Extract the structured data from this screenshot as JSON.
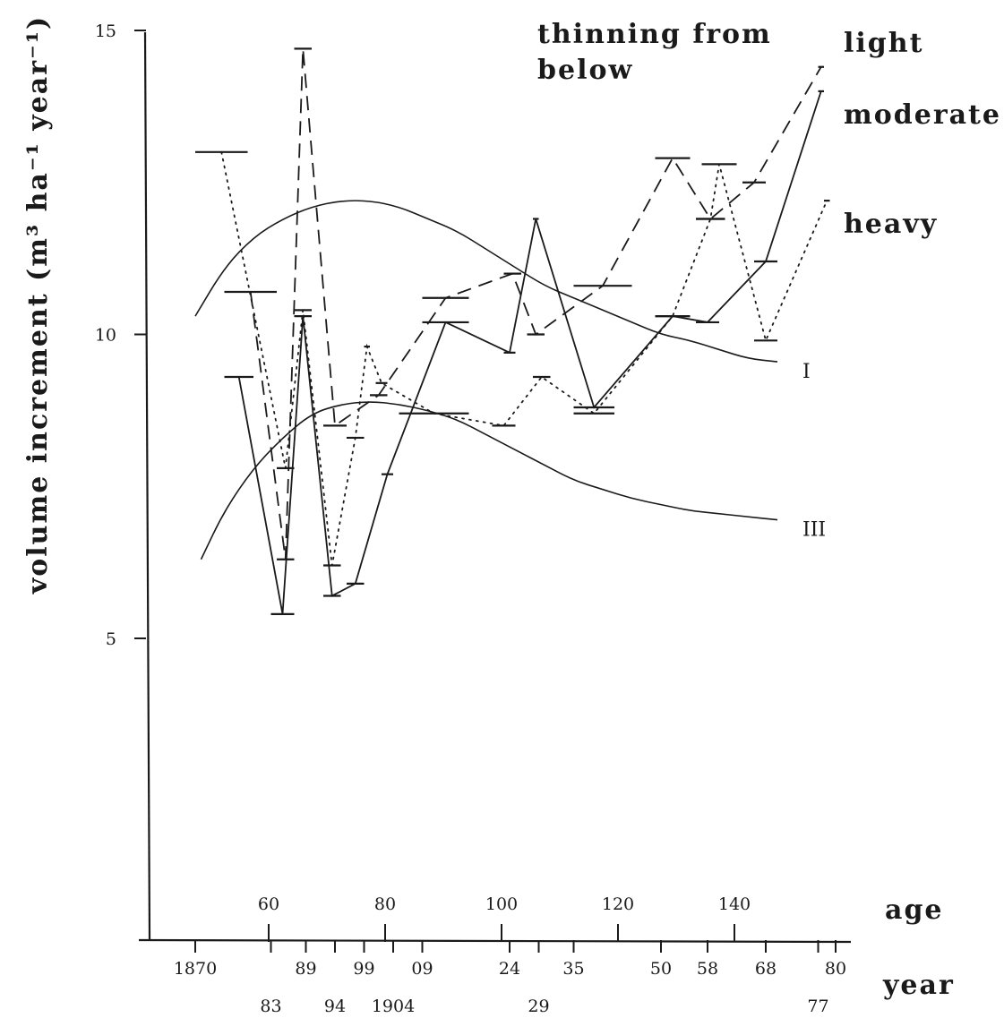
{
  "chart_data": {
    "type": "line",
    "ylabel": "volume increment (m³ ha⁻¹ year⁻¹)",
    "legend_title": [
      "thinning from",
      "below"
    ],
    "ylim": [
      0,
      15
    ],
    "y_ticks": [
      {
        "value": 5,
        "label": "5"
      },
      {
        "value": 10,
        "label": "10"
      },
      {
        "value": 15,
        "label": "15"
      }
    ],
    "age_axis": {
      "label": "age",
      "ticks": [
        {
          "age": 60,
          "label": "60"
        },
        {
          "age": 80,
          "label": "80"
        },
        {
          "age": 100,
          "label": "100"
        },
        {
          "age": 120,
          "label": "120"
        },
        {
          "age": 140,
          "label": "140"
        }
      ]
    },
    "year_axis": {
      "label": "year",
      "ticks": [
        {
          "year": 1870,
          "label": "1870",
          "row": 0
        },
        {
          "year": 1883,
          "label": "83",
          "row": 1
        },
        {
          "year": 1889,
          "label": "89",
          "row": 0
        },
        {
          "year": 1894,
          "label": "94",
          "row": 1
        },
        {
          "year": 1899,
          "label": "99",
          "row": 0
        },
        {
          "year": 1904,
          "label": "1904",
          "row": 1
        },
        {
          "year": 1909,
          "label": "09",
          "row": 0
        },
        {
          "year": 1924,
          "label": "24",
          "row": 0
        },
        {
          "year": 1929,
          "label": "29",
          "row": 1
        },
        {
          "year": 1935,
          "label": "35",
          "row": 0
        },
        {
          "year": 1950,
          "label": "50",
          "row": 0
        },
        {
          "year": 1958,
          "label": "58",
          "row": 0
        },
        {
          "year": 1968,
          "label": "68",
          "row": 0
        },
        {
          "year": 1977,
          "label": "77",
          "row": 1
        },
        {
          "year": 1980,
          "label": "80",
          "row": 0
        }
      ]
    },
    "series": [
      {
        "name": "light",
        "style": "dashed",
        "periods": [
          {
            "from": 1875,
            "to": 1884,
            "value": 10.7
          },
          {
            "from": 1884,
            "to": 1887,
            "value": 6.3
          },
          {
            "from": 1887,
            "to": 1890,
            "value": 14.7
          },
          {
            "from": 1892,
            "to": 1896,
            "value": 8.5
          },
          {
            "from": 1900,
            "to": 1903,
            "value": 9.0
          },
          {
            "from": 1909,
            "to": 1917,
            "value": 10.6
          },
          {
            "from": 1923,
            "to": 1926,
            "value": 11.0
          },
          {
            "from": 1927,
            "to": 1930,
            "value": 10.0
          },
          {
            "from": 1935,
            "to": 1945,
            "value": 10.8
          },
          {
            "from": 1949,
            "to": 1955,
            "value": 12.9
          },
          {
            "from": 1956,
            "to": 1961,
            "value": 11.9
          },
          {
            "from": 1964,
            "to": 1968,
            "value": 12.5
          },
          {
            "from": 1977,
            "to": 1978,
            "value": 14.4
          }
        ]
      },
      {
        "name": "moderate",
        "style": "solid",
        "periods": [
          {
            "from": 1875,
            "to": 1880,
            "value": 9.3
          },
          {
            "from": 1883,
            "to": 1887,
            "value": 5.4
          },
          {
            "from": 1887,
            "to": 1890,
            "value": 10.3
          },
          {
            "from": 1892,
            "to": 1895,
            "value": 5.7
          },
          {
            "from": 1896,
            "to": 1899,
            "value": 5.9
          },
          {
            "from": 1902,
            "to": 1904,
            "value": 7.7
          },
          {
            "from": 1909,
            "to": 1917,
            "value": 10.2
          },
          {
            "from": 1923,
            "to": 1925,
            "value": 9.7
          },
          {
            "from": 1928,
            "to": 1929,
            "value": 11.9
          },
          {
            "from": 1935,
            "to": 1942,
            "value": 8.8
          },
          {
            "from": 1949,
            "to": 1955,
            "value": 10.3
          },
          {
            "from": 1956,
            "to": 1960,
            "value": 10.2
          },
          {
            "from": 1966,
            "to": 1970,
            "value": 11.2
          },
          {
            "from": 1977,
            "to": 1978,
            "value": 14.0
          }
        ]
      },
      {
        "name": "heavy",
        "style": "dotted",
        "periods": [
          {
            "from": 1870,
            "to": 1879,
            "value": 13.0
          },
          {
            "from": 1884,
            "to": 1887,
            "value": 7.8
          },
          {
            "from": 1887,
            "to": 1890,
            "value": 10.4
          },
          {
            "from": 1892,
            "to": 1895,
            "value": 6.2
          },
          {
            "from": 1896,
            "to": 1899,
            "value": 8.3
          },
          {
            "from": 1899,
            "to": 1900,
            "value": 9.8
          },
          {
            "from": 1901,
            "to": 1903,
            "value": 9.2
          },
          {
            "from": 1905,
            "to": 1917,
            "value": 8.7
          },
          {
            "from": 1921,
            "to": 1925,
            "value": 8.5
          },
          {
            "from": 1928,
            "to": 1931,
            "value": 9.3
          },
          {
            "from": 1935,
            "to": 1942,
            "value": 8.7
          },
          {
            "from": 1949,
            "to": 1955,
            "value": 10.3
          },
          {
            "from": 1956,
            "to": 1961,
            "value": 11.9
          },
          {
            "from": 1957,
            "to": 1963,
            "value": 12.8
          },
          {
            "from": 1966,
            "to": 1970,
            "value": 9.9
          },
          {
            "from": 1978,
            "to": 1979,
            "value": 12.2
          }
        ]
      }
    ],
    "reference_curves": [
      {
        "name": "I",
        "points": [
          [
            1870,
            10.3
          ],
          [
            1875,
            11.1
          ],
          [
            1880,
            11.6
          ],
          [
            1885,
            11.9
          ],
          [
            1890,
            12.1
          ],
          [
            1895,
            12.2
          ],
          [
            1900,
            12.2
          ],
          [
            1905,
            12.1
          ],
          [
            1910,
            11.9
          ],
          [
            1915,
            11.7
          ],
          [
            1920,
            11.4
          ],
          [
            1925,
            11.1
          ],
          [
            1930,
            10.8
          ],
          [
            1935,
            10.6
          ],
          [
            1940,
            10.4
          ],
          [
            1945,
            10.2
          ],
          [
            1950,
            10.0
          ],
          [
            1955,
            9.9
          ],
          [
            1960,
            9.75
          ],
          [
            1965,
            9.6
          ],
          [
            1970,
            9.55
          ]
        ]
      },
      {
        "name": "III",
        "points": [
          [
            1871,
            6.3
          ],
          [
            1875,
            7.1
          ],
          [
            1880,
            7.8
          ],
          [
            1885,
            8.3
          ],
          [
            1890,
            8.7
          ],
          [
            1895,
            8.85
          ],
          [
            1900,
            8.9
          ],
          [
            1905,
            8.85
          ],
          [
            1910,
            8.75
          ],
          [
            1915,
            8.6
          ],
          [
            1920,
            8.35
          ],
          [
            1925,
            8.1
          ],
          [
            1930,
            7.85
          ],
          [
            1935,
            7.6
          ],
          [
            1940,
            7.45
          ],
          [
            1945,
            7.3
          ],
          [
            1950,
            7.2
          ],
          [
            1955,
            7.1
          ],
          [
            1960,
            7.05
          ],
          [
            1965,
            7.0
          ],
          [
            1970,
            6.95
          ]
        ]
      }
    ]
  }
}
